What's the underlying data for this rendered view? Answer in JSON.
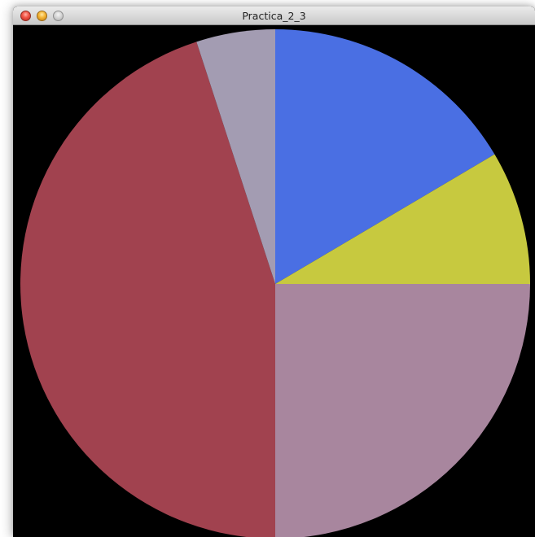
{
  "window": {
    "title": "Practica_2_3",
    "buttons": {
      "close": "close",
      "minimize": "minimize",
      "zoom": "zoom"
    }
  },
  "chart_data": {
    "type": "pie",
    "start_angle_deg": 90,
    "direction": "clockwise",
    "slices": [
      {
        "value": 16.5,
        "color": "#4a6fe3"
      },
      {
        "value": 8.5,
        "color": "#c7c93f"
      },
      {
        "value": 25,
        "color": "#a8869e"
      },
      {
        "value": 45,
        "color": "#a1424f"
      },
      {
        "value": 5,
        "color": "#a39cb2"
      }
    ]
  }
}
